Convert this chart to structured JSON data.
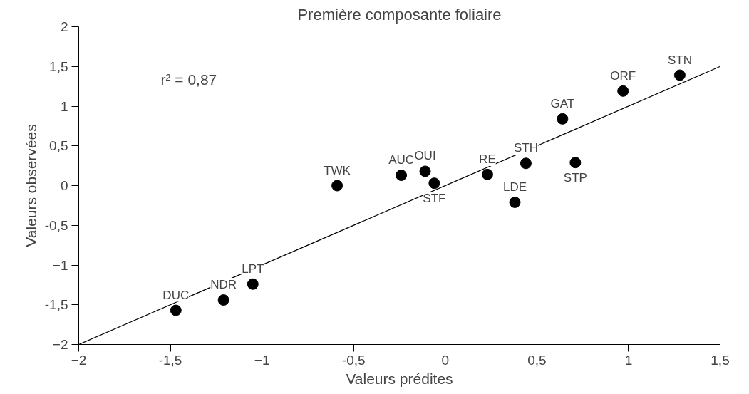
{
  "chart_data": {
    "type": "scatter",
    "title": "Première composante foliaire",
    "xlabel": "Valeurs prédites",
    "ylabel": "Valeurs observées",
    "xlim": [
      -2,
      1.5
    ],
    "ylim": [
      -2,
      2
    ],
    "xticks": [
      -2,
      {
        "value": -1.5,
        "label": "-1,5"
      },
      -1,
      {
        "value": -0.5,
        "label": "-0,5"
      },
      0,
      {
        "value": 0.5,
        "label": "0,5"
      },
      1,
      {
        "value": 1.5,
        "label": "1,5"
      }
    ],
    "yticks": [
      -2,
      {
        "value": -1.5,
        "label": "-1,5"
      },
      -1,
      {
        "value": -0.5,
        "label": "-0,5"
      },
      0,
      {
        "value": 0.5,
        "label": "0,5"
      },
      1,
      {
        "value": 1.5,
        "label": "1,5"
      },
      2
    ],
    "grid": false,
    "series": [
      {
        "marker": "circle",
        "color": "#000000",
        "x": [
          -1.47,
          -1.21,
          -1.05,
          -0.59,
          -0.24,
          -0.11,
          -0.06,
          0.23,
          0.38,
          0.44,
          0.71,
          0.64,
          0.97,
          1.28
        ],
        "values": [
          -1.57,
          -1.44,
          -1.24,
          0.0,
          0.13,
          0.18,
          0.03,
          0.14,
          -0.21,
          0.28,
          0.29,
          0.84,
          1.19,
          1.39
        ]
      },
      {
        "type": "line",
        "color": "#000000",
        "x": [
          -2,
          1.5
        ],
        "values": [
          -2,
          1.5
        ]
      }
    ],
    "annotations": [
      "r² = 0,87",
      {
        "text": "DUC",
        "x": -1.47,
        "y": -1.57
      },
      {
        "text": "NDR",
        "x": -1.21,
        "y": -1.44
      },
      {
        "text": "LPT",
        "x": -1.05,
        "y": -1.24
      },
      {
        "text": "TWK",
        "x": -0.59,
        "y": 0.0
      },
      {
        "text": "AUC",
        "x": -0.24,
        "y": 0.13
      },
      {
        "text": "OUI",
        "x": -0.11,
        "y": 0.18
      },
      {
        "text": "STF",
        "x": -0.06,
        "y": 0.03
      },
      {
        "text": "RE",
        "x": 0.23,
        "y": 0.14
      },
      {
        "text": "LDE",
        "x": 0.38,
        "y": -0.21
      },
      {
        "text": "STH",
        "x": 0.44,
        "y": 0.28
      },
      {
        "text": "STP",
        "x": 0.71,
        "y": 0.29
      },
      {
        "text": "GAT",
        "x": 0.64,
        "y": 0.84
      },
      {
        "text": "ORF",
        "x": 0.97,
        "y": 1.19
      },
      {
        "text": "STN",
        "x": 1.28,
        "y": 1.39
      }
    ]
  }
}
